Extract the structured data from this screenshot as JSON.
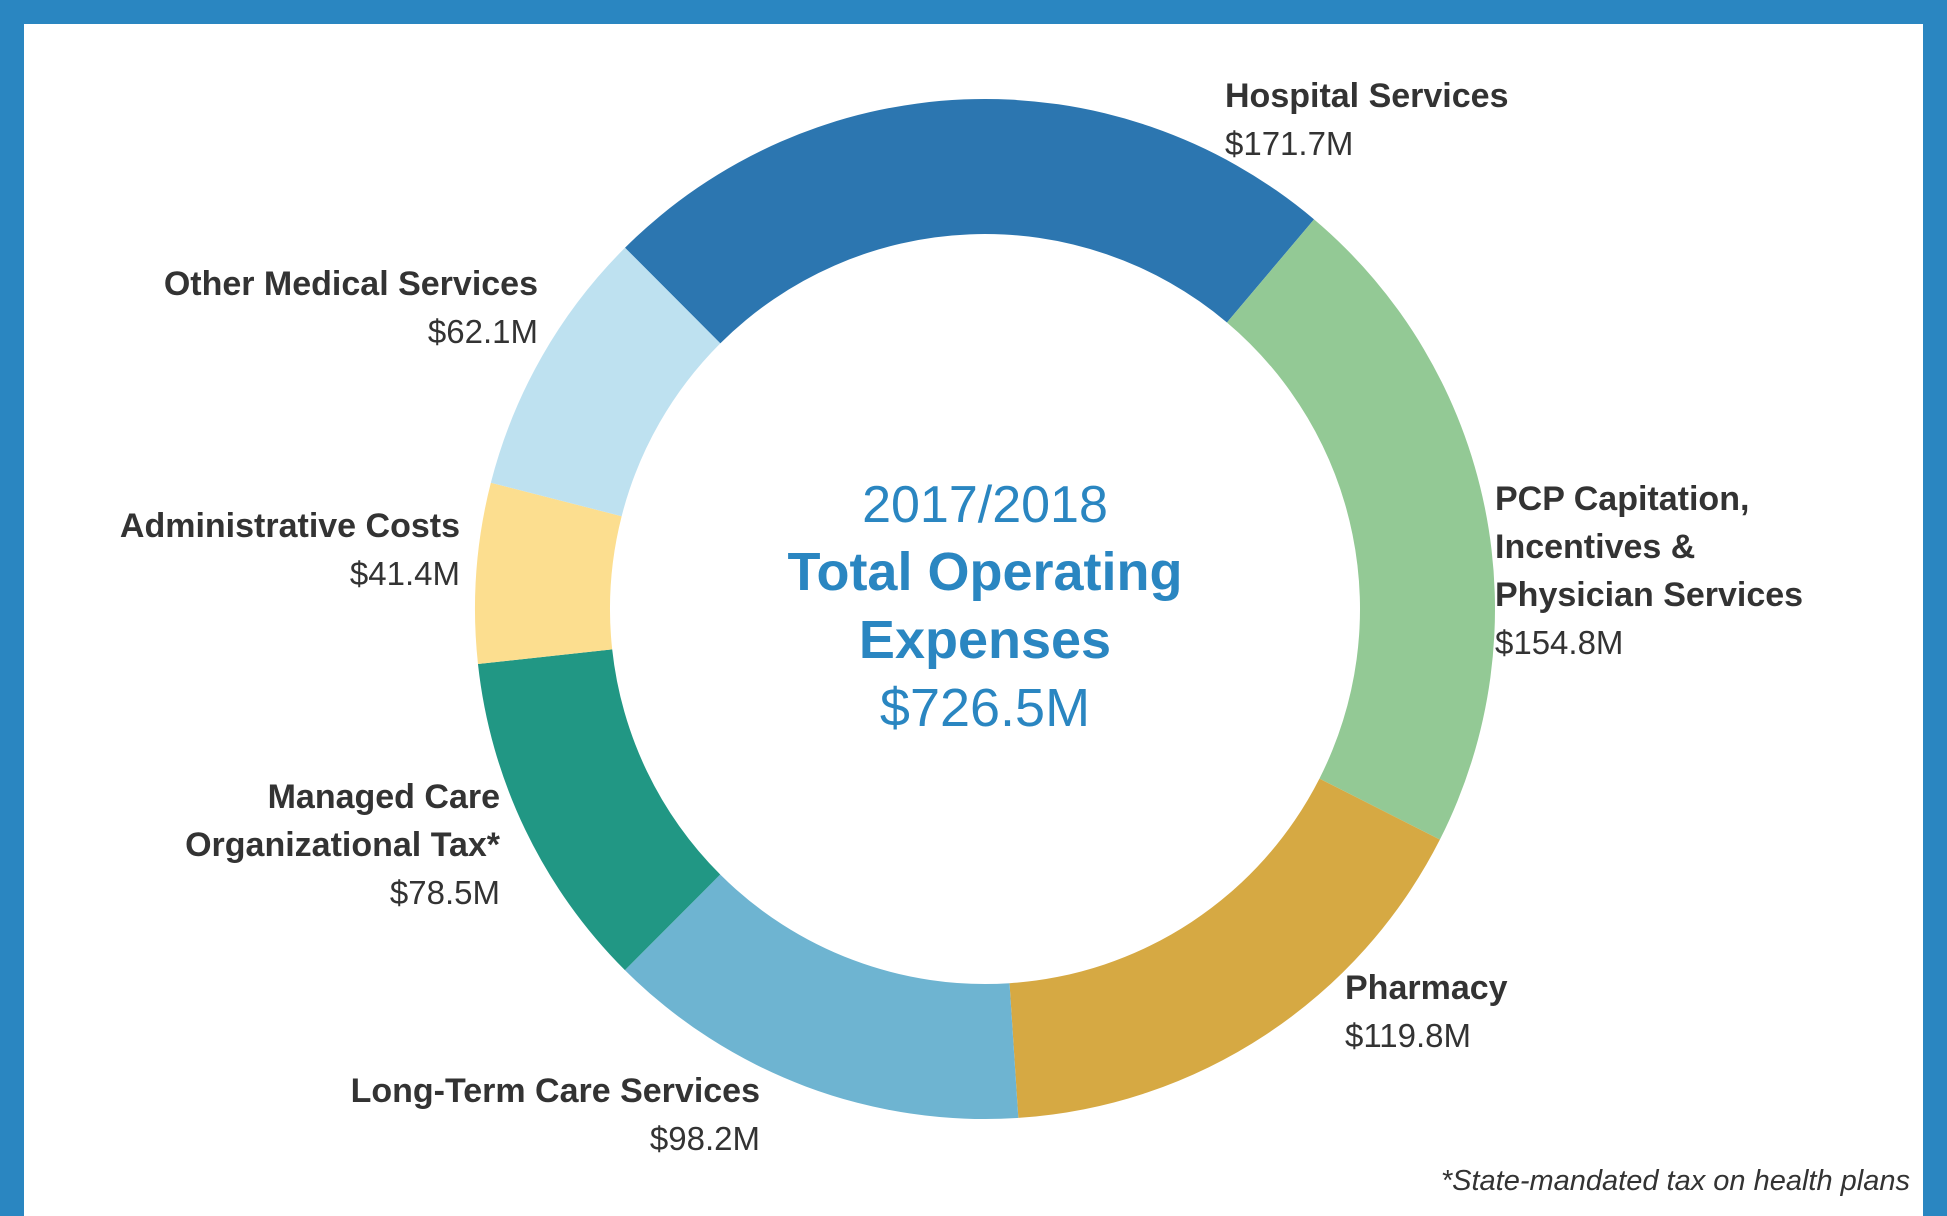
{
  "chart_data": {
    "type": "pie",
    "center": {
      "year": "2017/2018",
      "title_line1": "Total Operating",
      "title_line2": "Expenses",
      "total": "$726.5M"
    },
    "slices": [
      {
        "label": [
          "Hospital Services"
        ],
        "value": 171.7,
        "value_label": "$171.7M",
        "color": "#2c76b0"
      },
      {
        "label": [
          "PCP Capitation,",
          "Incentives &",
          "Physician Services"
        ],
        "value": 154.8,
        "value_label": "$154.8M",
        "color": "#93c995"
      },
      {
        "label": [
          "Pharmacy"
        ],
        "value": 119.8,
        "value_label": "$119.8M",
        "color": "#d6a943"
      },
      {
        "label": [
          "Long-Term Care Services"
        ],
        "value": 98.2,
        "value_label": "$98.2M",
        "color": "#6eb4d1"
      },
      {
        "label": [
          "Managed Care",
          "Organizational Tax*"
        ],
        "value": 78.5,
        "value_label": "$78.5M",
        "color": "#219784"
      },
      {
        "label": [
          "Administrative Costs"
        ],
        "value": 41.4,
        "value_label": "$41.4M",
        "color": "#fcde8f"
      },
      {
        "label": [
          "Other Medical Services"
        ],
        "value": 62.1,
        "value_label": "$62.1M",
        "color": "#bee1f0"
      }
    ],
    "footnote": "*State-mandated tax on health plans"
  },
  "colors": {
    "border": "#2a86c1",
    "accent_text": "#2a86c1",
    "label_text": "#333333"
  }
}
